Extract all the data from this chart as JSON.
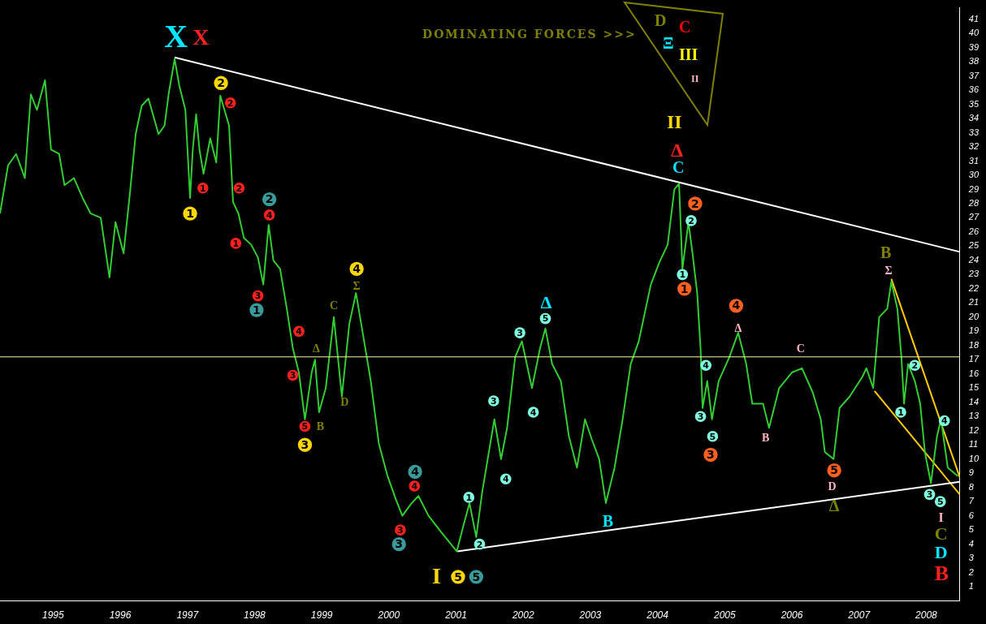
{
  "chart_data": {
    "type": "line",
    "title": "DOMINATING FORCES >>>",
    "marker": "none",
    "legend": false,
    "xlim": [
      1994.21,
      2008.5
    ],
    "xticks": [
      1995,
      1996,
      1997,
      1998,
      1999,
      2000,
      2001,
      2002,
      2003,
      2004,
      2005,
      2006,
      2007,
      2008
    ],
    "ylim": [
      0,
      41.8
    ],
    "yticks": [
      1,
      2,
      3,
      4,
      5,
      6,
      7,
      8,
      9,
      10,
      11,
      12,
      13,
      14,
      15,
      16,
      17,
      18,
      19,
      20,
      21,
      22,
      23,
      24,
      25,
      26,
      27,
      28,
      29,
      30,
      31,
      32,
      33,
      34,
      35,
      36,
      37,
      38,
      39,
      40,
      41
    ],
    "ref_lines": [
      {
        "axis": "y",
        "value": 17.2,
        "color": "#ffff99"
      }
    ],
    "series": [
      {
        "color": "#33cc33",
        "x": [
          1994.21,
          1994.33,
          1994.45,
          1994.58,
          1994.67,
          1994.76,
          1994.88,
          1994.97,
          1995.09,
          1995.17,
          1995.31,
          1995.44,
          1995.56,
          1995.71,
          1995.84,
          1995.93,
          1996.05,
          1996.15,
          1996.23,
          1996.32,
          1996.42,
          1996.57,
          1996.66,
          1996.72,
          1996.81,
          1996.88,
          1996.97,
          1997.04,
          1997.08,
          1997.13,
          1997.18,
          1997.24,
          1997.34,
          1997.43,
          1997.49,
          1997.62,
          1997.68,
          1997.76,
          1997.84,
          1997.95,
          1998.05,
          1998.13,
          1998.21,
          1998.28,
          1998.38,
          1998.48,
          1998.57,
          1998.66,
          1998.75,
          1998.85,
          1998.9,
          1998.96,
          1999.06,
          1999.18,
          1999.3,
          1999.41,
          1999.51,
          1999.61,
          1999.73,
          1999.85,
          1999.98,
          2000.1,
          2000.2,
          2000.34,
          2000.44,
          2000.59,
          2000.77,
          2001.01,
          2001.12,
          2001.2,
          2001.3,
          2001.39,
          2001.45,
          2001.57,
          2001.67,
          2001.76,
          2001.88,
          2001.98,
          2002.13,
          2002.25,
          2002.33,
          2002.43,
          2002.56,
          2002.68,
          2002.8,
          2002.92,
          2003.02,
          2003.13,
          2003.23,
          2003.36,
          2003.48,
          2003.6,
          2003.72,
          2003.9,
          2004.03,
          2004.15,
          2004.25,
          2004.32,
          2004.37,
          2004.46,
          2004.52,
          2004.59,
          2004.64,
          2004.67,
          2004.74,
          2004.81,
          2004.91,
          2005.07,
          2005.2,
          2005.32,
          2005.41,
          2005.57,
          2005.66,
          2005.81,
          2006.0,
          2006.15,
          2006.31,
          2006.43,
          2006.49,
          2006.62,
          2006.71,
          2006.86,
          2007.05,
          2007.11,
          2007.21,
          2007.3,
          2007.42,
          2007.48,
          2007.57,
          2007.63,
          2007.67,
          2007.73,
          2007.83,
          2007.91,
          2007.98,
          2008.07,
          2008.16,
          2008.22,
          2008.32,
          2008.47
        ],
        "values": [
          27.3,
          30.7,
          31.5,
          29.8,
          35.7,
          34.6,
          36.7,
          31.8,
          31.5,
          29.3,
          29.8,
          28.4,
          27.3,
          27.0,
          22.8,
          26.7,
          24.5,
          29.0,
          32.9,
          34.9,
          35.4,
          32.9,
          33.5,
          35.7,
          38.2,
          36.3,
          34.6,
          28.4,
          31.8,
          34.3,
          31.8,
          30.1,
          32.6,
          30.9,
          35.6,
          33.5,
          28.1,
          27.3,
          25.6,
          25.1,
          24.2,
          22.3,
          26.5,
          24.0,
          23.4,
          20.6,
          17.8,
          16.1,
          12.8,
          16.1,
          17.0,
          13.3,
          15.0,
          20.0,
          14.4,
          19.5,
          21.7,
          18.9,
          15.5,
          11.1,
          8.8,
          7.2,
          6.0,
          6.9,
          7.4,
          6.0,
          4.9,
          3.5,
          5.5,
          6.9,
          4.5,
          7.7,
          9.4,
          12.8,
          10.0,
          12.2,
          17.2,
          18.3,
          15.0,
          17.8,
          19.2,
          16.7,
          15.5,
          11.6,
          9.4,
          12.8,
          11.4,
          10.0,
          6.9,
          9.4,
          12.8,
          16.7,
          18.3,
          22.3,
          23.9,
          25.1,
          29.0,
          29.4,
          23.4,
          26.7,
          24.5,
          21.7,
          17.8,
          13.6,
          15.5,
          12.8,
          15.5,
          17.2,
          18.9,
          16.7,
          13.9,
          13.9,
          12.2,
          15.0,
          16.1,
          16.4,
          14.7,
          12.8,
          10.5,
          10.0,
          13.6,
          14.4,
          15.8,
          16.4,
          15.0,
          20.0,
          20.6,
          22.5,
          20.6,
          17.2,
          13.9,
          16.7,
          15.5,
          13.9,
          10.5,
          8.3,
          11.6,
          12.8,
          9.4,
          8.8
        ]
      },
      {
        "color": "#ffffff",
        "x": [
          1996.81,
          2008.5
        ],
        "values": [
          38.3,
          24.6
        ]
      },
      {
        "color": "#ffffff",
        "x": [
          2001.02,
          2008.5
        ],
        "values": [
          3.5,
          8.4
        ]
      },
      {
        "color": "#ffcc00",
        "x": [
          2007.48,
          2008.5
        ],
        "values": [
          22.7,
          8.7
        ]
      },
      {
        "color": "#ffcc00",
        "x": [
          2007.23,
          2008.5
        ],
        "values": [
          14.8,
          7.5
        ]
      }
    ],
    "annotations": [
      "D",
      "C",
      "Ξ",
      "III",
      "II",
      "X",
      "X",
      "1",
      "2",
      "1",
      "2",
      "2",
      "1",
      "2",
      "4",
      "3",
      "1",
      "4",
      "3",
      "5",
      "3",
      "Δ",
      "B",
      "C",
      "D",
      "4",
      "Σ",
      "4",
      "4",
      "3",
      "3",
      "I",
      "5",
      "5",
      "1",
      "2",
      "3",
      "3",
      "4",
      "4",
      "5",
      "Δ",
      "B",
      "II",
      "Δ",
      "C",
      "2",
      "2",
      "1",
      "1",
      "4",
      "Δ",
      "4",
      "3",
      "5",
      "3",
      "B",
      "C",
      "5",
      "D",
      "Δ",
      "B",
      "Σ",
      "1",
      "2",
      "4",
      "3",
      "5",
      "I",
      "C",
      "D",
      "B"
    ]
  }
}
